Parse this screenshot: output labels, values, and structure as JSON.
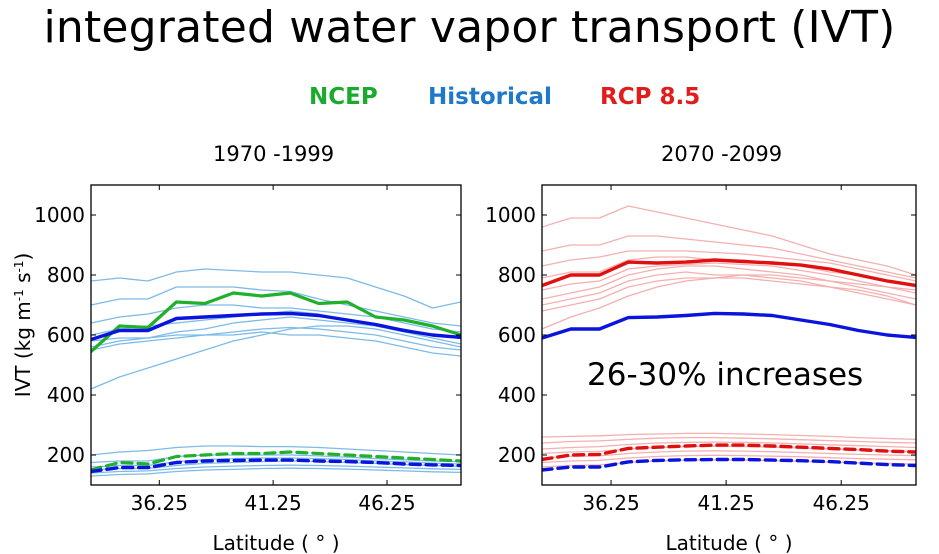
{
  "title": "integrated water vapor transport (IVT)",
  "legend": [
    {
      "label": "NCEP",
      "color": "#1aab2e"
    },
    {
      "label": "Historical",
      "color": "#1f78c8"
    },
    {
      "label": "RCP 8.5",
      "color": "#e21b1b"
    }
  ],
  "colors": {
    "ncep": "#21b02b",
    "historical_mean": "#0b14dc",
    "historical_member": "#7cbbe8",
    "rcp_mean": "#e01010",
    "rcp_member": "#f4b0b0"
  },
  "chart_data": [
    {
      "type": "line",
      "title": "1970 -1999",
      "xlabel": "Latitude ( ° )",
      "ylabel": "IVT (kg m-1 s-1)",
      "ylabel_base": "IVT (kg m",
      "ylabel_exp1": "-1",
      "ylabel_mid": " s",
      "ylabel_exp2": "-1",
      "ylabel_end": ")",
      "xlim": [
        33.25,
        49.5
      ],
      "ylim": [
        100,
        1100
      ],
      "xticks": [
        36.25,
        41.25,
        46.25
      ],
      "xticklabels": [
        "36.25",
        "41.25",
        "46.25"
      ],
      "yticks": [
        200,
        400,
        600,
        800,
        1000
      ],
      "x": [
        33.25,
        34.5,
        35.75,
        37.0,
        38.25,
        39.5,
        40.75,
        42.0,
        43.25,
        44.5,
        45.75,
        47.0,
        48.25,
        49.5
      ],
      "series": [
        {
          "role": "member",
          "style": "solid",
          "values": [
            780,
            790,
            780,
            810,
            820,
            815,
            810,
            810,
            800,
            790,
            760,
            730,
            690,
            710
          ]
        },
        {
          "role": "member",
          "style": "solid",
          "values": [
            700,
            720,
            720,
            760,
            760,
            760,
            750,
            745,
            720,
            700,
            680,
            660,
            640,
            630
          ]
        },
        {
          "role": "member",
          "style": "solid",
          "values": [
            640,
            660,
            670,
            690,
            700,
            700,
            690,
            690,
            680,
            670,
            660,
            640,
            620,
            610
          ]
        },
        {
          "role": "member",
          "style": "solid",
          "values": [
            600,
            620,
            630,
            640,
            650,
            660,
            670,
            680,
            670,
            650,
            630,
            620,
            600,
            590
          ]
        },
        {
          "role": "member",
          "style": "solid",
          "values": [
            580,
            590,
            590,
            610,
            620,
            640,
            650,
            660,
            650,
            640,
            630,
            610,
            590,
            570
          ]
        },
        {
          "role": "member",
          "style": "solid",
          "values": [
            560,
            580,
            590,
            600,
            600,
            610,
            620,
            625,
            620,
            610,
            600,
            580,
            560,
            550
          ]
        },
        {
          "role": "member",
          "style": "solid",
          "values": [
            550,
            570,
            580,
            590,
            600,
            600,
            610,
            600,
            600,
            590,
            580,
            560,
            540,
            530
          ]
        },
        {
          "role": "member",
          "style": "solid",
          "values": [
            420,
            460,
            490,
            520,
            550,
            580,
            600,
            620,
            630,
            630,
            620,
            600,
            580,
            560
          ]
        },
        {
          "role": "member",
          "style": "solid",
          "values": [
            200,
            210,
            215,
            225,
            230,
            230,
            228,
            228,
            225,
            220,
            215,
            210,
            205,
            200
          ]
        },
        {
          "role": "member",
          "style": "solid",
          "values": [
            175,
            180,
            180,
            195,
            200,
            200,
            200,
            200,
            197,
            193,
            188,
            184,
            180,
            178
          ]
        },
        {
          "role": "member",
          "style": "solid",
          "values": [
            160,
            165,
            165,
            178,
            185,
            188,
            190,
            190,
            188,
            185,
            180,
            177,
            173,
            170
          ]
        },
        {
          "role": "member",
          "style": "solid",
          "values": [
            150,
            155,
            155,
            165,
            172,
            175,
            178,
            180,
            178,
            175,
            172,
            168,
            165,
            162
          ]
        },
        {
          "role": "member",
          "style": "solid",
          "values": [
            140,
            145,
            147,
            155,
            160,
            163,
            165,
            166,
            165,
            163,
            160,
            157,
            154,
            152
          ]
        },
        {
          "role": "member",
          "style": "solid",
          "values": [
            130,
            135,
            137,
            145,
            150,
            152,
            155,
            156,
            155,
            153,
            150,
            147,
            144,
            142
          ]
        },
        {
          "role": "ncep",
          "style": "solid",
          "values": [
            545,
            630,
            625,
            710,
            705,
            740,
            730,
            740,
            705,
            710,
            660,
            650,
            630,
            600
          ]
        },
        {
          "role": "ncep",
          "style": "dashed",
          "values": [
            150,
            175,
            170,
            195,
            200,
            205,
            205,
            210,
            205,
            200,
            195,
            190,
            185,
            180
          ]
        },
        {
          "role": "hist_mean",
          "style": "solid",
          "values": [
            585,
            615,
            615,
            655,
            660,
            665,
            670,
            672,
            665,
            650,
            635,
            615,
            600,
            592
          ]
        },
        {
          "role": "hist_mean",
          "style": "dashed",
          "values": [
            145,
            158,
            158,
            175,
            180,
            182,
            183,
            183,
            180,
            178,
            175,
            170,
            167,
            165
          ]
        }
      ]
    },
    {
      "type": "line",
      "title": "2070 -2099",
      "xlabel": "Latitude ( ° )",
      "annotation": "26-30% increases",
      "xlim": [
        33.25,
        49.5
      ],
      "ylim": [
        100,
        1100
      ],
      "xticks": [
        36.25,
        41.25,
        46.25
      ],
      "xticklabels": [
        "36.25",
        "41.25",
        "46.25"
      ],
      "yticks": [
        200,
        400,
        600,
        800,
        1000
      ],
      "x": [
        33.25,
        34.5,
        35.75,
        37.0,
        38.25,
        39.5,
        40.75,
        42.0,
        43.25,
        44.5,
        45.75,
        47.0,
        48.25,
        49.5
      ],
      "series": [
        {
          "role": "member",
          "style": "solid",
          "values": [
            960,
            990,
            990,
            1030,
            1010,
            990,
            970,
            950,
            930,
            900,
            870,
            850,
            830,
            800
          ]
        },
        {
          "role": "member",
          "style": "solid",
          "values": [
            880,
            900,
            900,
            930,
            930,
            920,
            910,
            900,
            890,
            870,
            850,
            830,
            810,
            790
          ]
        },
        {
          "role": "member",
          "style": "solid",
          "values": [
            830,
            850,
            860,
            880,
            880,
            880,
            875,
            870,
            860,
            850,
            840,
            820,
            800,
            780
          ]
        },
        {
          "role": "member",
          "style": "solid",
          "values": [
            790,
            810,
            810,
            850,
            860,
            860,
            850,
            850,
            840,
            830,
            810,
            800,
            780,
            760
          ]
        },
        {
          "role": "member",
          "style": "solid",
          "values": [
            750,
            770,
            780,
            820,
            830,
            835,
            840,
            835,
            830,
            815,
            800,
            780,
            760,
            740
          ]
        },
        {
          "role": "member",
          "style": "solid",
          "values": [
            720,
            740,
            760,
            800,
            820,
            830,
            830,
            820,
            810,
            800,
            780,
            760,
            740,
            720
          ]
        },
        {
          "role": "member",
          "style": "solid",
          "values": [
            700,
            720,
            740,
            780,
            800,
            810,
            800,
            800,
            790,
            780,
            760,
            740,
            720,
            700
          ]
        },
        {
          "role": "member",
          "style": "solid",
          "values": [
            680,
            700,
            720,
            760,
            780,
            790,
            790,
            790,
            780,
            770,
            760,
            750,
            730,
            700
          ]
        },
        {
          "role": "member",
          "style": "solid",
          "values": [
            620,
            660,
            690,
            730,
            760,
            780,
            790,
            800,
            800,
            790,
            780,
            770,
            760,
            750
          ]
        },
        {
          "role": "member",
          "style": "solid",
          "values": [
            260,
            262,
            264,
            268,
            270,
            272,
            272,
            270,
            268,
            265,
            262,
            258,
            255,
            252
          ]
        },
        {
          "role": "member",
          "style": "solid",
          "values": [
            240,
            245,
            247,
            252,
            256,
            258,
            258,
            256,
            254,
            251,
            248,
            245,
            242,
            240
          ]
        },
        {
          "role": "member",
          "style": "solid",
          "values": [
            220,
            225,
            228,
            235,
            240,
            242,
            243,
            242,
            240,
            237,
            234,
            231,
            228,
            225
          ]
        },
        {
          "role": "member",
          "style": "solid",
          "values": [
            205,
            210,
            212,
            220,
            225,
            228,
            229,
            228,
            226,
            223,
            220,
            217,
            214,
            212
          ]
        },
        {
          "role": "member",
          "style": "solid",
          "values": [
            190,
            195,
            197,
            205,
            210,
            213,
            214,
            213,
            211,
            208,
            205,
            202,
            200,
            198
          ]
        },
        {
          "role": "member",
          "style": "solid",
          "values": [
            175,
            180,
            182,
            190,
            195,
            198,
            199,
            198,
            196,
            194,
            191,
            188,
            186,
            184
          ]
        },
        {
          "role": "member",
          "style": "solid",
          "values": [
            160,
            165,
            167,
            175,
            180,
            183,
            184,
            183,
            181,
            179,
            176,
            174,
            172,
            170
          ]
        },
        {
          "role": "rcp_mean",
          "style": "solid",
          "values": [
            765,
            800,
            800,
            843,
            840,
            843,
            850,
            845,
            840,
            833,
            820,
            800,
            780,
            765
          ]
        },
        {
          "role": "rcp_mean",
          "style": "dashed",
          "values": [
            185,
            200,
            202,
            222,
            226,
            230,
            233,
            233,
            230,
            226,
            222,
            218,
            213,
            210
          ]
        },
        {
          "role": "hist_mean",
          "style": "solid",
          "values": [
            590,
            620,
            620,
            658,
            660,
            665,
            672,
            670,
            665,
            650,
            635,
            615,
            600,
            592
          ]
        },
        {
          "role": "hist_mean",
          "style": "dashed",
          "values": [
            150,
            160,
            160,
            177,
            182,
            184,
            185,
            185,
            183,
            181,
            178,
            173,
            168,
            165
          ]
        }
      ]
    }
  ]
}
